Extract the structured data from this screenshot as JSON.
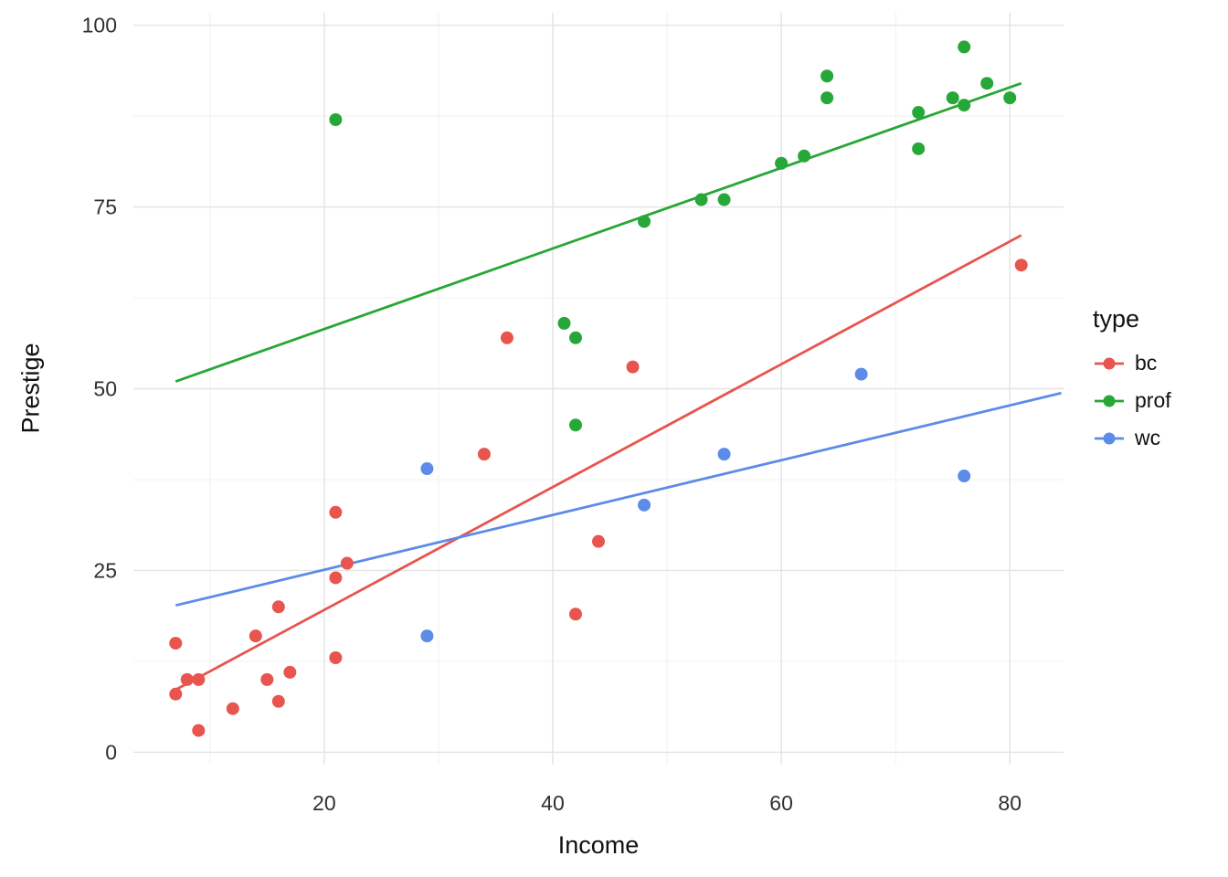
{
  "chart_data": {
    "type": "scatter",
    "title": "",
    "xlabel": "Income",
    "ylabel": "Prestige",
    "xlim": [
      3.3,
      84.7
    ],
    "ylim": [
      -1.7,
      101.7
    ],
    "x_ticks": [
      20,
      40,
      60,
      80
    ],
    "y_ticks": [
      0,
      25,
      50,
      75,
      100
    ],
    "x_minor_ticks": [
      10,
      30,
      50,
      70
    ],
    "y_minor_ticks": [
      12.5,
      37.5,
      62.5,
      87.5
    ],
    "grid": "on",
    "background_color": "#ffffff",
    "major_grid_color": "#e3e3e3",
    "minor_grid_color": "#f1f1f1",
    "tick_label_color": "#303030",
    "legend": {
      "title": "type",
      "position": "right"
    },
    "series": [
      {
        "name": "bc",
        "color": "#e8544e",
        "points": [
          [
            21,
            33
          ],
          [
            47,
            53
          ],
          [
            81,
            67
          ],
          [
            36,
            57
          ],
          [
            22,
            26
          ],
          [
            44,
            29
          ],
          [
            15,
            10
          ],
          [
            7,
            15
          ],
          [
            42,
            19
          ],
          [
            9,
            10
          ],
          [
            21,
            13
          ],
          [
            21,
            24
          ],
          [
            16,
            20
          ],
          [
            16,
            7
          ],
          [
            9,
            3
          ],
          [
            14,
            16
          ],
          [
            12,
            6
          ],
          [
            17,
            11
          ],
          [
            7,
            8
          ],
          [
            34,
            41
          ],
          [
            8,
            10
          ]
        ],
        "trend_line": {
          "x1": 7,
          "y1": 8.6,
          "x2": 81,
          "y2": 71.1
        }
      },
      {
        "name": "prof",
        "color": "#27a737",
        "points": [
          [
            62,
            82
          ],
          [
            72,
            83
          ],
          [
            75,
            90
          ],
          [
            55,
            76
          ],
          [
            64,
            90
          ],
          [
            21,
            87
          ],
          [
            64,
            93
          ],
          [
            80,
            90
          ],
          [
            72,
            88
          ],
          [
            42,
            57
          ],
          [
            76,
            89
          ],
          [
            76,
            97
          ],
          [
            41,
            59
          ],
          [
            48,
            73
          ],
          [
            53,
            76
          ],
          [
            60,
            81
          ],
          [
            42,
            45
          ],
          [
            78,
            92
          ]
        ],
        "trend_line": {
          "x1": 7,
          "y1": 51.0,
          "x2": 81,
          "y2": 92.0
        }
      },
      {
        "name": "wc",
        "color": "#5c8be8",
        "points": [
          [
            67,
            52
          ],
          [
            76,
            38
          ],
          [
            29,
            39
          ],
          [
            48,
            34
          ],
          [
            55,
            41
          ],
          [
            29,
            16
          ]
        ],
        "trend_line": {
          "x1": 7,
          "y1": 20.2,
          "x2": 84.5,
          "y2": 49.4
        }
      }
    ]
  }
}
